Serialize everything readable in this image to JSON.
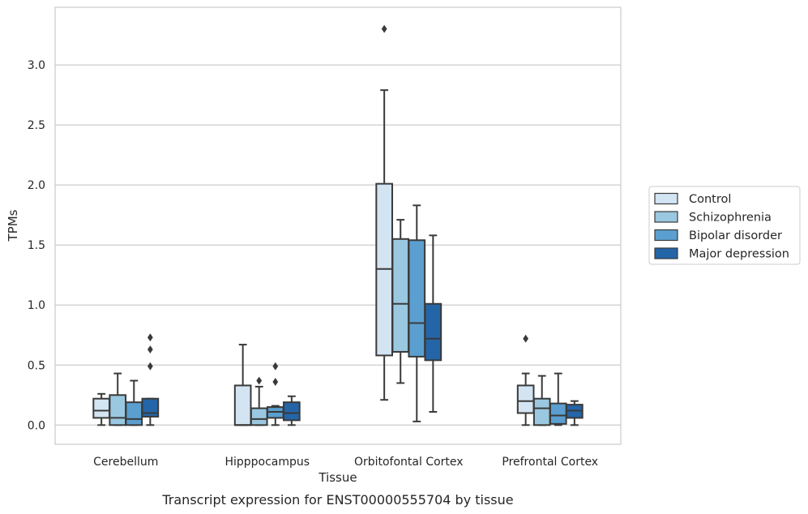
{
  "chart_data": {
    "type": "box",
    "xlabel": "Tissue",
    "ylabel": "TPMs",
    "caption": "Transcript expression for ENST00000555704 by tissue",
    "ylim": [
      -0.16,
      3.48
    ],
    "yticks": [
      "0.0",
      "0.5",
      "1.0",
      "1.5",
      "2.0",
      "2.5",
      "3.0"
    ],
    "grid": true,
    "legend_position": "right",
    "categories": [
      "Cerebellum",
      "Hipppocampus",
      "Orbitofontal Cortex",
      "Prefrontal Cortex"
    ],
    "series": [
      {
        "name": "Control",
        "color": "#d3e4f3",
        "boxes": [
          {
            "whislo": 0.0,
            "q1": 0.06,
            "med": 0.12,
            "q3": 0.22,
            "whishi": 0.26,
            "fliers": []
          },
          {
            "whislo": 0.0,
            "q1": 0.0,
            "med": 0.0,
            "q3": 0.33,
            "whishi": 0.67,
            "fliers": []
          },
          {
            "whislo": 0.21,
            "q1": 0.58,
            "med": 1.3,
            "q3": 2.01,
            "whishi": 2.79,
            "fliers": [
              3.3
            ]
          },
          {
            "whislo": 0.0,
            "q1": 0.1,
            "med": 0.2,
            "q3": 0.33,
            "whishi": 0.43,
            "fliers": [
              0.72
            ]
          }
        ]
      },
      {
        "name": "Schizophrenia",
        "color": "#9ac8e0",
        "boxes": [
          {
            "whislo": 0.0,
            "q1": 0.0,
            "med": 0.06,
            "q3": 0.25,
            "whishi": 0.43,
            "fliers": []
          },
          {
            "whislo": 0.0,
            "q1": 0.0,
            "med": 0.05,
            "q3": 0.14,
            "whishi": 0.32,
            "fliers": [
              0.37
            ]
          },
          {
            "whislo": 0.35,
            "q1": 0.61,
            "med": 1.01,
            "q3": 1.55,
            "whishi": 1.71,
            "fliers": []
          },
          {
            "whislo": 0.0,
            "q1": 0.0,
            "med": 0.14,
            "q3": 0.22,
            "whishi": 0.41,
            "fliers": []
          }
        ]
      },
      {
        "name": "Bipolar disorder",
        "color": "#5a9fcf",
        "boxes": [
          {
            "whislo": 0.0,
            "q1": 0.0,
            "med": 0.05,
            "q3": 0.19,
            "whishi": 0.37,
            "fliers": []
          },
          {
            "whislo": 0.0,
            "q1": 0.06,
            "med": 0.11,
            "q3": 0.15,
            "whishi": 0.16,
            "fliers": [
              0.36,
              0.49
            ]
          },
          {
            "whislo": 0.03,
            "q1": 0.57,
            "med": 0.85,
            "q3": 1.54,
            "whishi": 1.83,
            "fliers": []
          },
          {
            "whislo": 0.0,
            "q1": 0.01,
            "med": 0.08,
            "q3": 0.18,
            "whishi": 0.43,
            "fliers": []
          }
        ]
      },
      {
        "name": "Major depression",
        "color": "#2465a8",
        "boxes": [
          {
            "whislo": 0.0,
            "q1": 0.07,
            "med": 0.1,
            "q3": 0.22,
            "whishi": 0.22,
            "fliers": [
              0.49,
              0.63,
              0.73
            ]
          },
          {
            "whislo": 0.0,
            "q1": 0.04,
            "med": 0.1,
            "q3": 0.19,
            "whishi": 0.24,
            "fliers": []
          },
          {
            "whislo": 0.11,
            "q1": 0.54,
            "med": 0.72,
            "q3": 1.01,
            "whishi": 1.58,
            "fliers": []
          },
          {
            "whislo": 0.0,
            "q1": 0.06,
            "med": 0.12,
            "q3": 0.17,
            "whishi": 0.2,
            "fliers": []
          }
        ]
      }
    ]
  }
}
